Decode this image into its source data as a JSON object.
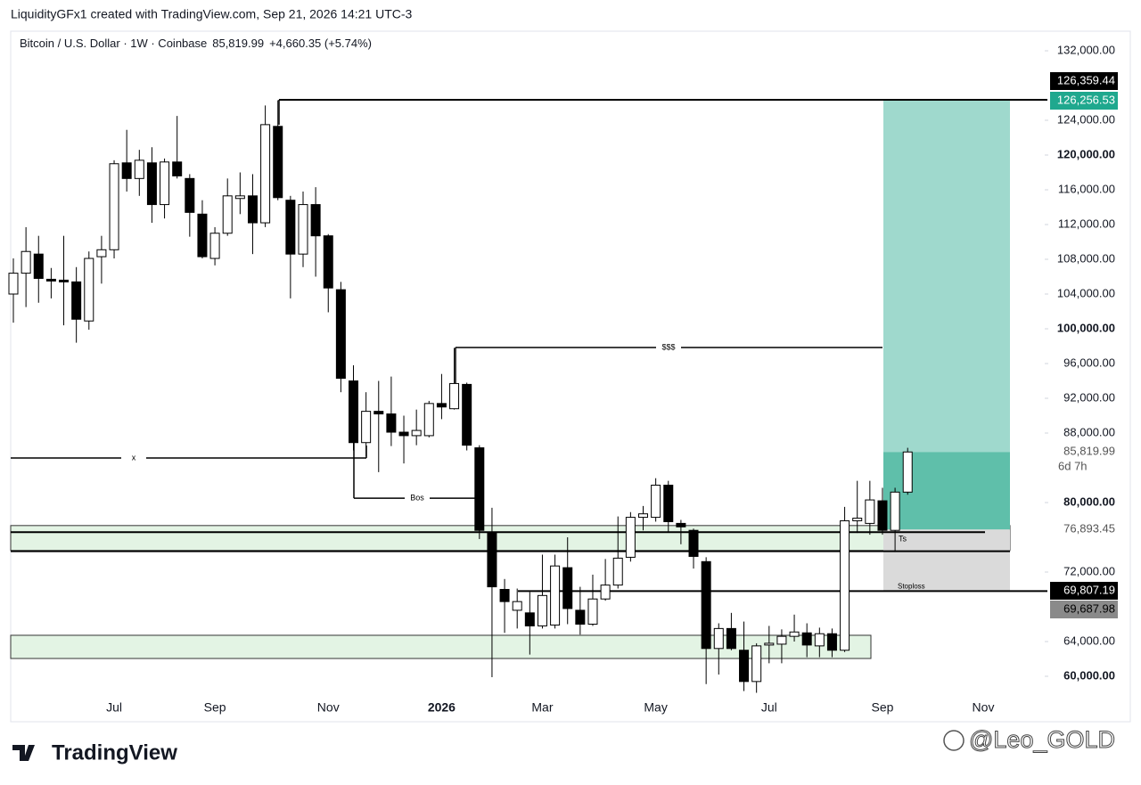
{
  "header": {
    "caption": "LiquidityGFx1 created with TradingView.com, Sep 21, 2026 14:21 UTC-3"
  },
  "chart_data": {
    "type": "candlestick",
    "title": "Bitcoin / U.S. Dollar · 1W · Coinbase",
    "last_price": "85,819.99",
    "change": "+4,660.35 (+5.74%)",
    "categories": [
      null,
      null,
      null,
      null,
      null,
      null,
      null,
      null,
      "Jul",
      null,
      null,
      null,
      null,
      null,
      null,
      null,
      "Sep",
      null,
      null,
      null,
      null,
      null,
      null,
      null,
      null,
      "Nov",
      null,
      null,
      null,
      null,
      null,
      null,
      null,
      null,
      "2026",
      null,
      null,
      null,
      null,
      null,
      null,
      null,
      "Mar",
      null,
      null,
      null,
      null,
      null,
      null,
      null,
      null,
      "May",
      null,
      null,
      null,
      null,
      null,
      null,
      null,
      null,
      "Jul",
      null,
      null,
      null,
      null,
      null,
      null,
      null,
      null,
      "Sep",
      null,
      null,
      null,
      null,
      null,
      null,
      null,
      "Nov",
      null,
      null,
      null,
      null
    ],
    "open": [
      104000,
      106400,
      108600,
      105700,
      105600,
      105400,
      100900,
      108300,
      109100,
      119100,
      117300,
      119100,
      114300,
      119200,
      117300,
      113200,
      108100,
      111000,
      115000,
      115300,
      112200,
      123300,
      114800,
      108600,
      114300,
      110700,
      104500,
      94000,
      86900,
      90500,
      90200,
      88100,
      87700,
      87700,
      91400,
      90800,
      93600,
      86300,
      76600,
      70000,
      67600,
      67300,
      65800,
      65900,
      72500,
      67600,
      66000,
      68900,
      70500,
      73700,
      78300,
      78300,
      82000,
      77600,
      76800,
      73200,
      63200,
      65500,
      63000,
      59400,
      63600,
      63700,
      64600,
      65000,
      63500,
      64900,
      63000,
      77900,
      77600,
      80200,
      76800,
      81200,
      null,
      null,
      null,
      null,
      null,
      null,
      null,
      null,
      null,
      null
    ],
    "high": [
      108100,
      111700,
      110700,
      107000,
      110700,
      107100,
      108900,
      110700,
      119400,
      122900,
      120600,
      120900,
      119600,
      124500,
      117800,
      114800,
      111700,
      117300,
      118000,
      117800,
      125700,
      126300,
      115300,
      115800,
      116300,
      110900,
      105400,
      95800,
      92700,
      94000,
      94500,
      90000,
      90700,
      91700,
      94800,
      97800,
      93800,
      86600,
      79400,
      71200,
      70100,
      69700,
      74000,
      74000,
      76000,
      70300,
      71700,
      73500,
      78400,
      78900,
      79600,
      82800,
      82500,
      78000,
      77000,
      73700,
      66100,
      67300,
      66300,
      63800,
      65800,
      65400,
      67100,
      66100,
      65600,
      65500,
      79500,
      82500,
      82500,
      81700,
      81700,
      86300,
      null,
      null,
      null,
      null,
      null,
      null,
      null,
      null,
      null,
      null
    ],
    "low": [
      100700,
      102500,
      103000,
      103500,
      100400,
      98400,
      99900,
      105200,
      108100,
      115800,
      115300,
      112200,
      112700,
      117300,
      110600,
      108100,
      107300,
      110700,
      113200,
      108600,
      111700,
      114800,
      103500,
      107100,
      106000,
      101900,
      92700,
      86000,
      85300,
      83500,
      86500,
      84500,
      86600,
      87500,
      89600,
      90700,
      86000,
      75800,
      59900,
      65000,
      65500,
      62500,
      65500,
      65500,
      66000,
      64800,
      65800,
      68700,
      70100,
      73200,
      76800,
      77800,
      76600,
      75200,
      72400,
      59100,
      60200,
      63000,
      58300,
      58100,
      61500,
      61500,
      64000,
      62200,
      62200,
      62200,
      62800,
      76500,
      76300,
      76300,
      74300,
      80900,
      null,
      null,
      null,
      null,
      null,
      null,
      null,
      null,
      null,
      null
    ],
    "close": [
      106400,
      108900,
      105800,
      105500,
      105400,
      101100,
      108100,
      109100,
      119000,
      117300,
      119400,
      114300,
      119200,
      117600,
      113400,
      108300,
      111000,
      115300,
      115300,
      112200,
      123500,
      115100,
      108600,
      114300,
      110700,
      104700,
      94300,
      86900,
      90500,
      90200,
      88100,
      87700,
      88300,
      91400,
      91000,
      93700,
      86600,
      76800,
      70300,
      68600,
      68600,
      65800,
      69300,
      72700,
      67800,
      66000,
      68900,
      70500,
      73600,
      78300,
      78700,
      82000,
      77800,
      77200,
      73800,
      63200,
      65500,
      63200,
      59400,
      63500,
      63800,
      64600,
      65100,
      63600,
      64900,
      63000,
      77900,
      78200,
      80300,
      76800,
      81200,
      85819.99,
      null,
      null,
      null,
      null,
      null,
      null,
      null,
      null,
      null,
      null
    ],
    "up_color": "#ffffff",
    "down_color": "#000000",
    "edge_color": "#000000",
    "ylim": [
      54769,
      133744
    ],
    "yticks": [
      {
        "value": 132000,
        "label": "132,000.00"
      },
      {
        "value": 124000,
        "label": "124,000.00"
      },
      {
        "value": 120000,
        "label": "120,000.00"
      },
      {
        "value": 116000,
        "label": "116,000.00"
      },
      {
        "value": 112000,
        "label": "112,000.00"
      },
      {
        "value": 108000,
        "label": "108,000.00"
      },
      {
        "value": 104000,
        "label": "104,000.00"
      },
      {
        "value": 100000,
        "label": "100,000.00"
      },
      {
        "value": 96000,
        "label": "96,000.00"
      },
      {
        "value": 92000,
        "label": "92,000.00"
      },
      {
        "value": 88000,
        "label": "88,000.00"
      },
      {
        "value": 80000,
        "label": "80,000.00"
      },
      {
        "value": 72000,
        "label": "72,000.00"
      },
      {
        "value": 64000,
        "label": "64,000.00"
      },
      {
        "value": 60000,
        "label": "60,000.00"
      }
    ],
    "levels": [
      {
        "value": 126359.44,
        "label": "126,359.44"
      },
      {
        "value": 126256.53,
        "label": "126,256.53"
      },
      {
        "value": 85819.99,
        "label": "85,819.99"
      },
      {
        "value": 76893.45,
        "label": "76,893.45"
      },
      {
        "value": 69807.19,
        "label": "69,807.19"
      },
      {
        "value": 69687.98,
        "label": "69,687.98"
      }
    ],
    "countdown": "6d 7h",
    "annotations": [
      {
        "text": "$$$",
        "value": 97850
      },
      {
        "text": "x",
        "value": 85130
      },
      {
        "text": "Bos",
        "value": 80500
      },
      {
        "text": "Ts"
      },
      {
        "text": "Stoploss"
      }
    ],
    "support_line": 74400,
    "zones": [
      {
        "from": 77351,
        "to": 74480
      },
      {
        "from": 64720,
        "to": 62050
      }
    ]
  },
  "footer": {
    "brand": "TradingView",
    "watermark": "@Leo_GOLD"
  }
}
